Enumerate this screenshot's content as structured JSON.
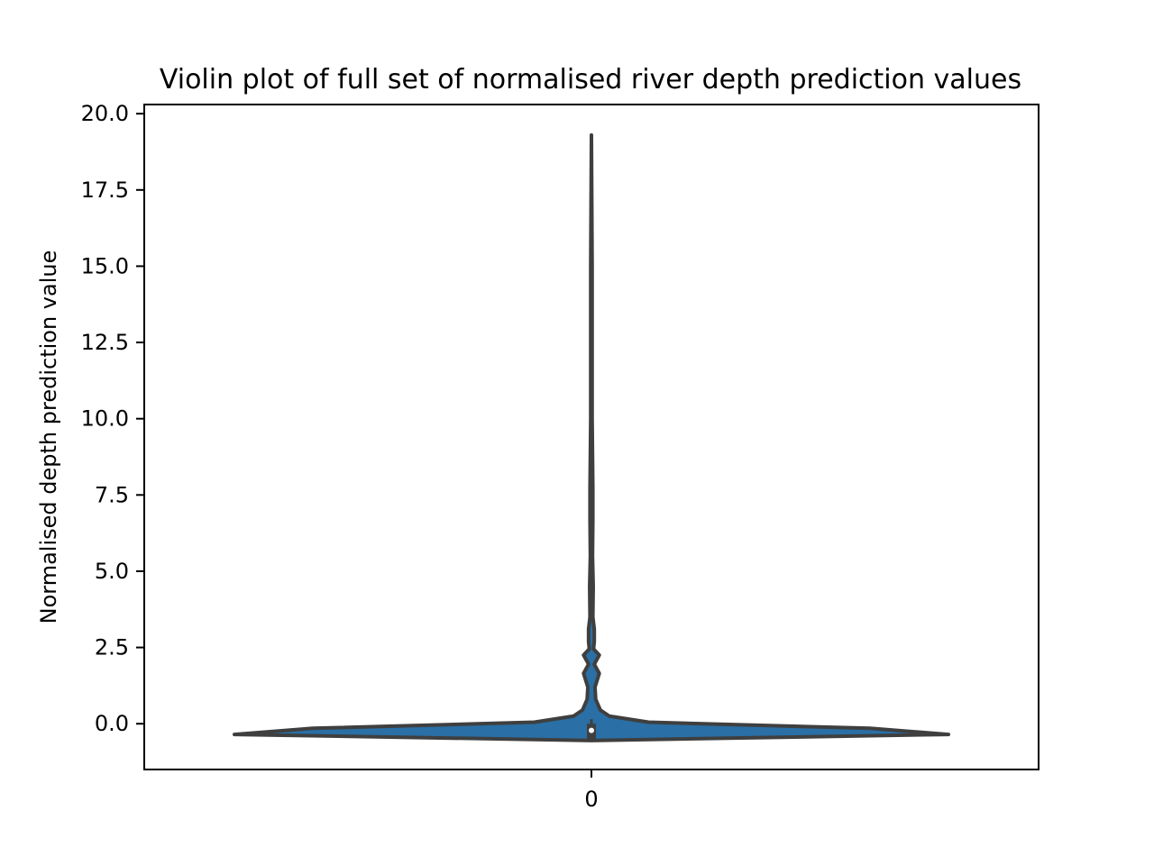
{
  "chart_data": {
    "type": "violin",
    "title": "Violin plot of full set of normalised river depth prediction values",
    "xlabel": "",
    "ylabel": "Normalised depth prediction value",
    "categories": [
      "0"
    ],
    "x_tick_labels": [
      "0"
    ],
    "ylim": [
      -1.5,
      20.3
    ],
    "y_ticks": [
      0.0,
      2.5,
      5.0,
      7.5,
      10.0,
      12.5,
      15.0,
      17.5,
      20.0
    ],
    "y_tick_labels": [
      "0.0",
      "2.5",
      "5.0",
      "7.5",
      "10.0",
      "12.5",
      "15.0",
      "17.5",
      "20.0"
    ],
    "grid": false,
    "legend": false,
    "violin_color": "#2a6fa5",
    "outline_color": "#3f3f3f",
    "box_color": "#3f3f3f",
    "median_color": "#ffffff",
    "distribution": {
      "min": -0.55,
      "q1": -0.5,
      "median": -0.22,
      "q3": 0.0,
      "max": 19.3,
      "whisker_low": -0.55,
      "whisker_high": 0.15
    },
    "density_profile": [
      {
        "y": -0.55,
        "half_width": 0.0
      },
      {
        "y": -0.35,
        "half_width": 1.0
      },
      {
        "y": -0.15,
        "half_width": 0.78
      },
      {
        "y": 0.05,
        "half_width": 0.16
      },
      {
        "y": 0.25,
        "half_width": 0.05
      },
      {
        "y": 0.45,
        "half_width": 0.025
      },
      {
        "y": 0.8,
        "half_width": 0.012
      },
      {
        "y": 1.2,
        "half_width": 0.01
      },
      {
        "y": 1.65,
        "half_width": 0.022
      },
      {
        "y": 1.95,
        "half_width": 0.008
      },
      {
        "y": 2.25,
        "half_width": 0.022
      },
      {
        "y": 2.45,
        "half_width": 0.006
      },
      {
        "y": 2.7,
        "half_width": 0.008
      },
      {
        "y": 3.1,
        "half_width": 0.008
      },
      {
        "y": 3.5,
        "half_width": 0.004
      },
      {
        "y": 4.5,
        "half_width": 0.005
      },
      {
        "y": 5.5,
        "half_width": 0.003
      },
      {
        "y": 6.7,
        "half_width": 0.004
      },
      {
        "y": 7.7,
        "half_width": 0.004
      },
      {
        "y": 10.0,
        "half_width": 0.002
      },
      {
        "y": 15.0,
        "half_width": 0.002
      },
      {
        "y": 19.3,
        "half_width": 0.0
      }
    ]
  }
}
